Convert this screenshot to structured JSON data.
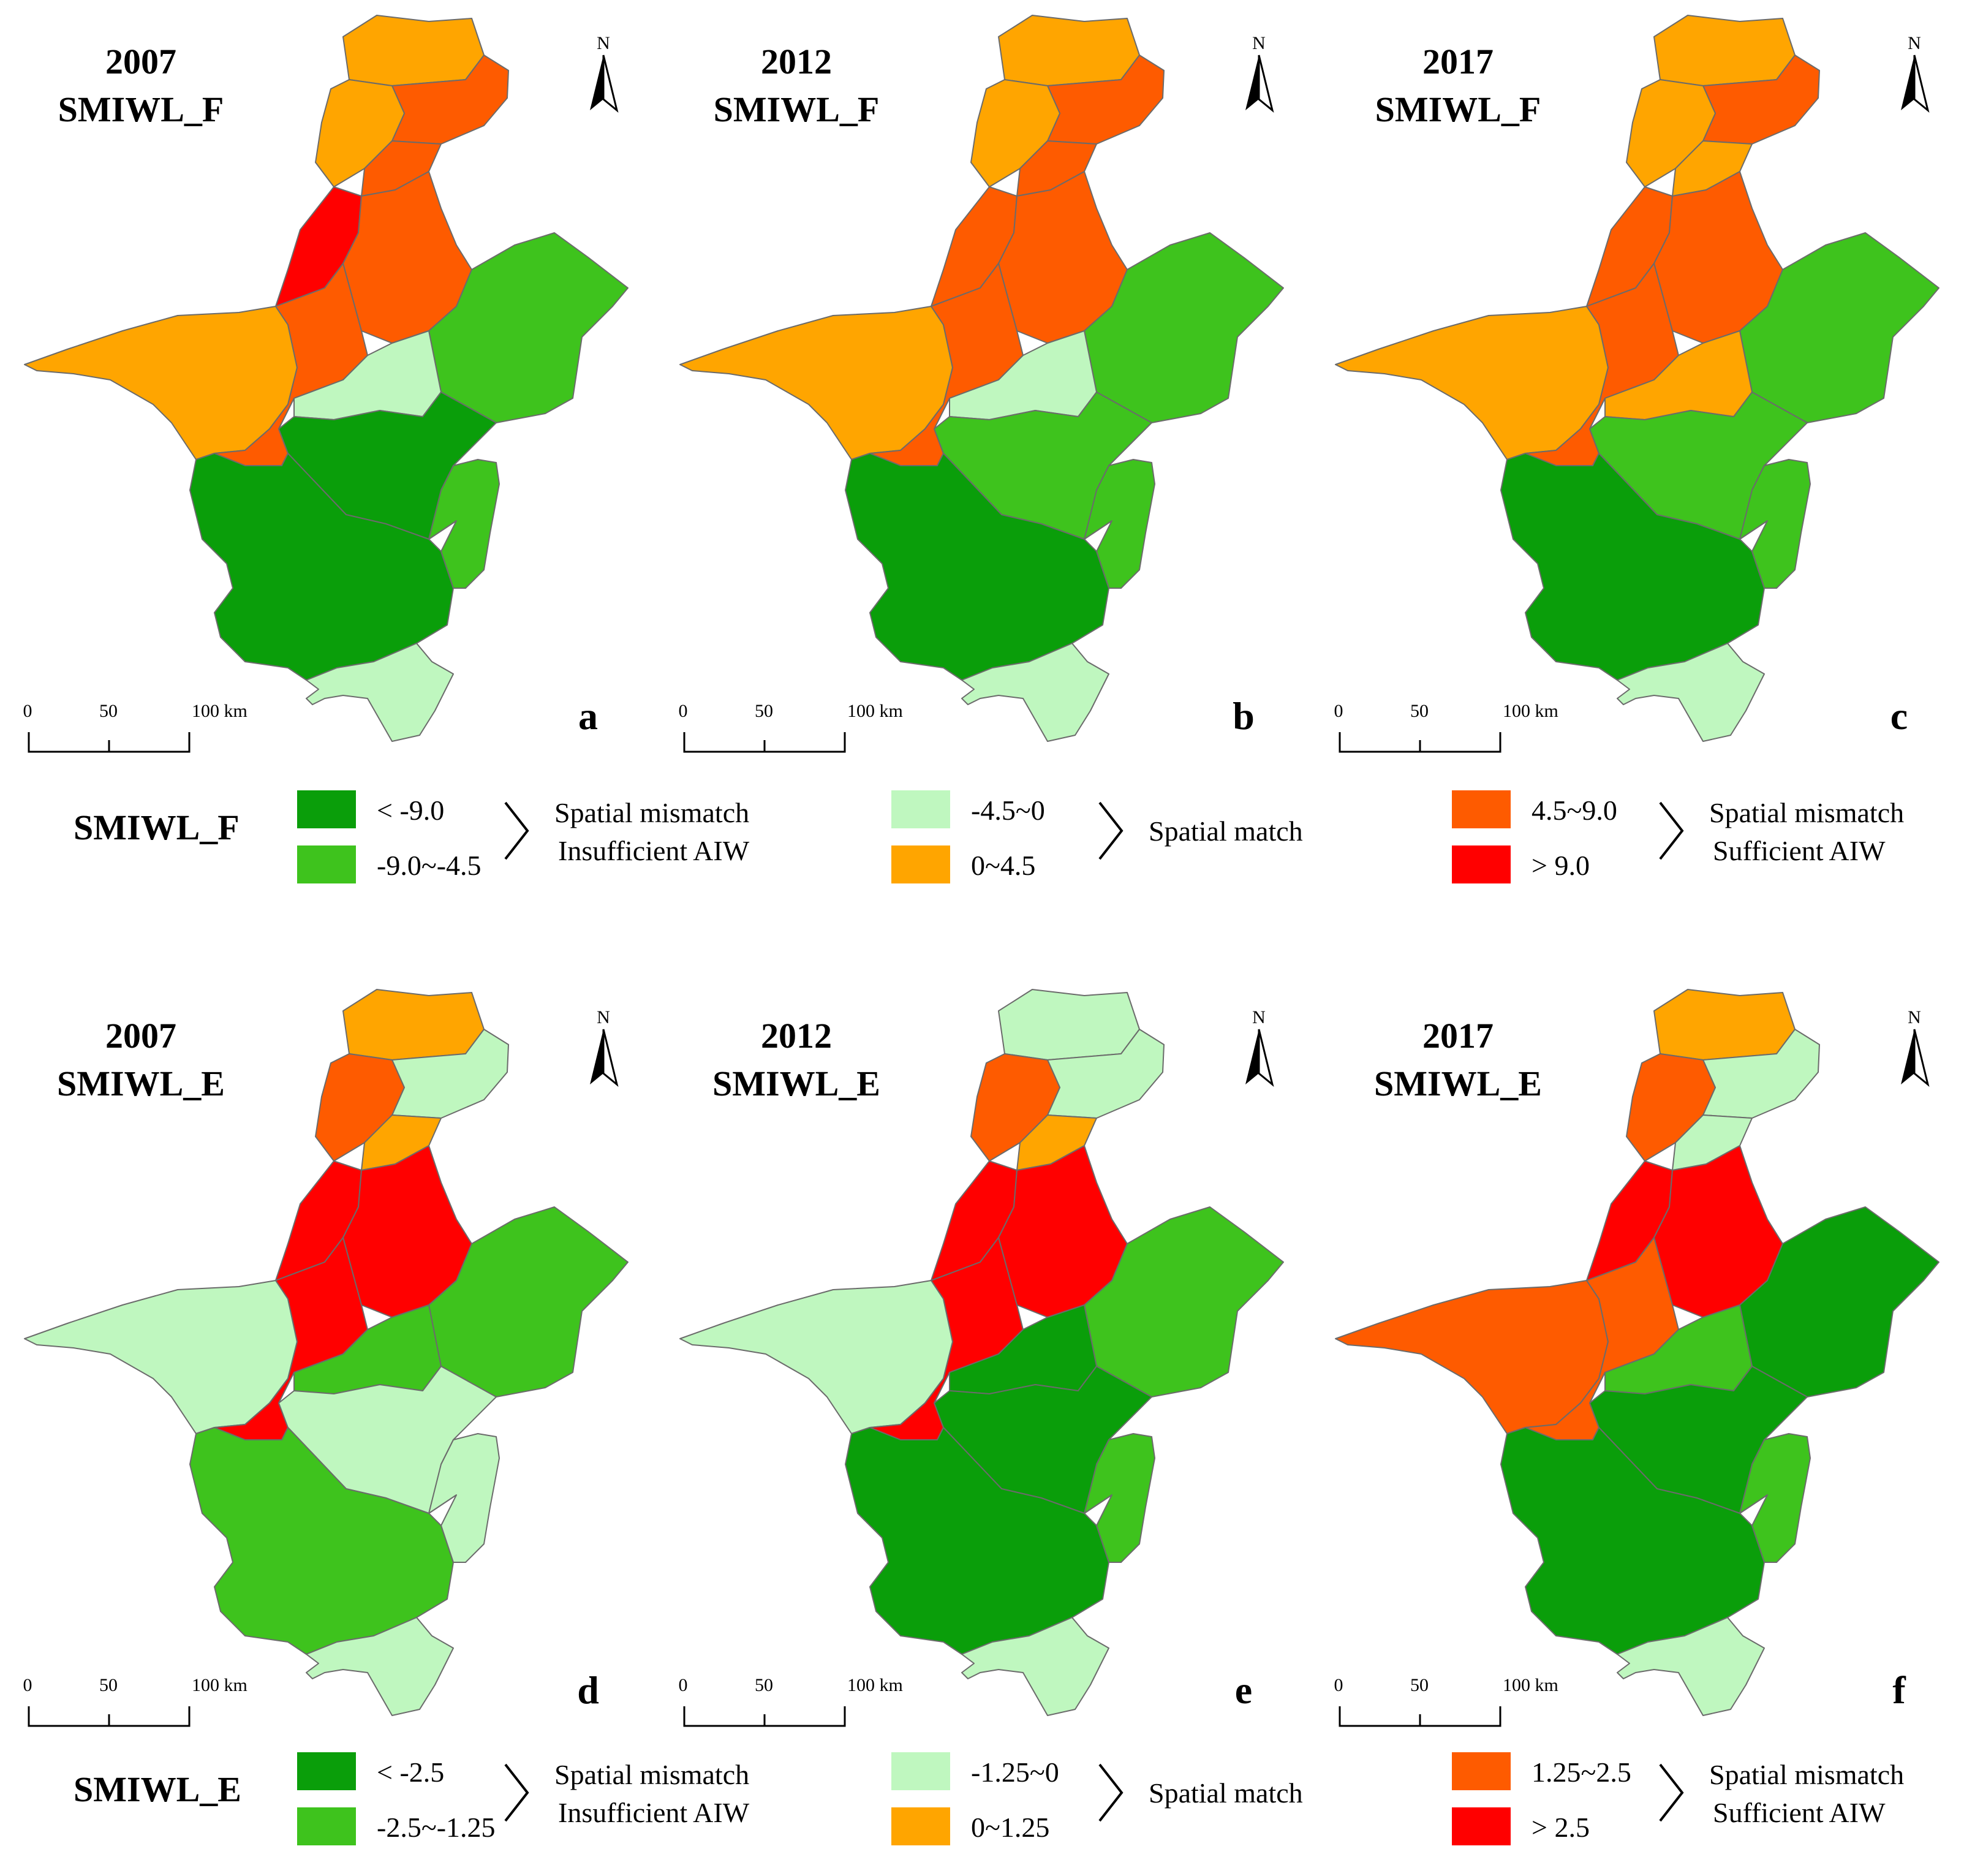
{
  "colors": {
    "dg": "#0a9e0a",
    "mg": "#3ec31d",
    "lg": "#bff7bf",
    "or": "#ffa500",
    "ro": "#fe5b00",
    "rd": "#ff0000"
  },
  "north_label": "N",
  "scale": {
    "zero": "0",
    "mid": "50",
    "end": "100 km"
  },
  "maps": [
    {
      "year": "2007",
      "indicator": "SMIWL_F",
      "letter": "a",
      "fills": [
        "or",
        "ro",
        "or",
        "ro",
        "rd",
        "ro",
        "mg",
        "or",
        "ro",
        "lg",
        "dg",
        "dg",
        "mg",
        "lg"
      ]
    },
    {
      "year": "2012",
      "indicator": "SMIWL_F",
      "letter": "b",
      "fills": [
        "or",
        "ro",
        "or",
        "ro",
        "ro",
        "ro",
        "mg",
        "or",
        "ro",
        "lg",
        "mg",
        "dg",
        "mg",
        "lg"
      ]
    },
    {
      "year": "2017",
      "indicator": "SMIWL_F",
      "letter": "c",
      "fills": [
        "or",
        "ro",
        "or",
        "or",
        "ro",
        "ro",
        "mg",
        "or",
        "ro",
        "or",
        "mg",
        "dg",
        "mg",
        "lg"
      ]
    },
    {
      "year": "2007",
      "indicator": "SMIWL_E",
      "letter": "d",
      "fills": [
        "or",
        "lg",
        "ro",
        "or",
        "rd",
        "rd",
        "mg",
        "lg",
        "rd",
        "mg",
        "lg",
        "mg",
        "lg",
        "lg"
      ]
    },
    {
      "year": "2012",
      "indicator": "SMIWL_E",
      "letter": "e",
      "fills": [
        "lg",
        "lg",
        "ro",
        "or",
        "rd",
        "rd",
        "mg",
        "lg",
        "rd",
        "dg",
        "dg",
        "dg",
        "mg",
        "lg"
      ]
    },
    {
      "year": "2017",
      "indicator": "SMIWL_E",
      "letter": "f",
      "fills": [
        "or",
        "lg",
        "ro",
        "lg",
        "rd",
        "rd",
        "dg",
        "ro",
        "ro",
        "mg",
        "dg",
        "dg",
        "mg",
        "lg"
      ]
    }
  ],
  "legends": [
    {
      "title": "SMIWL_F",
      "groups": [
        {
          "items": [
            {
              "color": "dg",
              "label": "< -9.0"
            },
            {
              "color": "mg",
              "label": "-9.0~-4.5"
            }
          ],
          "line1": "Spatial mismatch",
          "line2": "Insufficient AIW"
        },
        {
          "items": [
            {
              "color": "lg",
              "label": "-4.5~0"
            },
            {
              "color": "or",
              "label": "0~4.5"
            }
          ],
          "line1": "Spatial match",
          "line2": ""
        },
        {
          "items": [
            {
              "color": "ro",
              "label": "4.5~9.0"
            },
            {
              "color": "rd",
              "label": "> 9.0"
            }
          ],
          "line1": "Spatial mismatch",
          "line2": "Sufficient AIW"
        }
      ]
    },
    {
      "title": "SMIWL_E",
      "groups": [
        {
          "items": [
            {
              "color": "dg",
              "label": "< -2.5"
            },
            {
              "color": "mg",
              "label": "-2.5~-1.25"
            }
          ],
          "line1": "Spatial mismatch",
          "line2": "Insufficient AIW"
        },
        {
          "items": [
            {
              "color": "lg",
              "label": "-1.25~0"
            },
            {
              "color": "or",
              "label": "0~1.25"
            }
          ],
          "line1": "Spatial match",
          "line2": ""
        },
        {
          "items": [
            {
              "color": "ro",
              "label": "1.25~2.5"
            },
            {
              "color": "rd",
              "label": "> 2.5"
            }
          ],
          "line1": "Spatial mismatch",
          "line2": "Sufficient AIW"
        }
      ]
    }
  ]
}
